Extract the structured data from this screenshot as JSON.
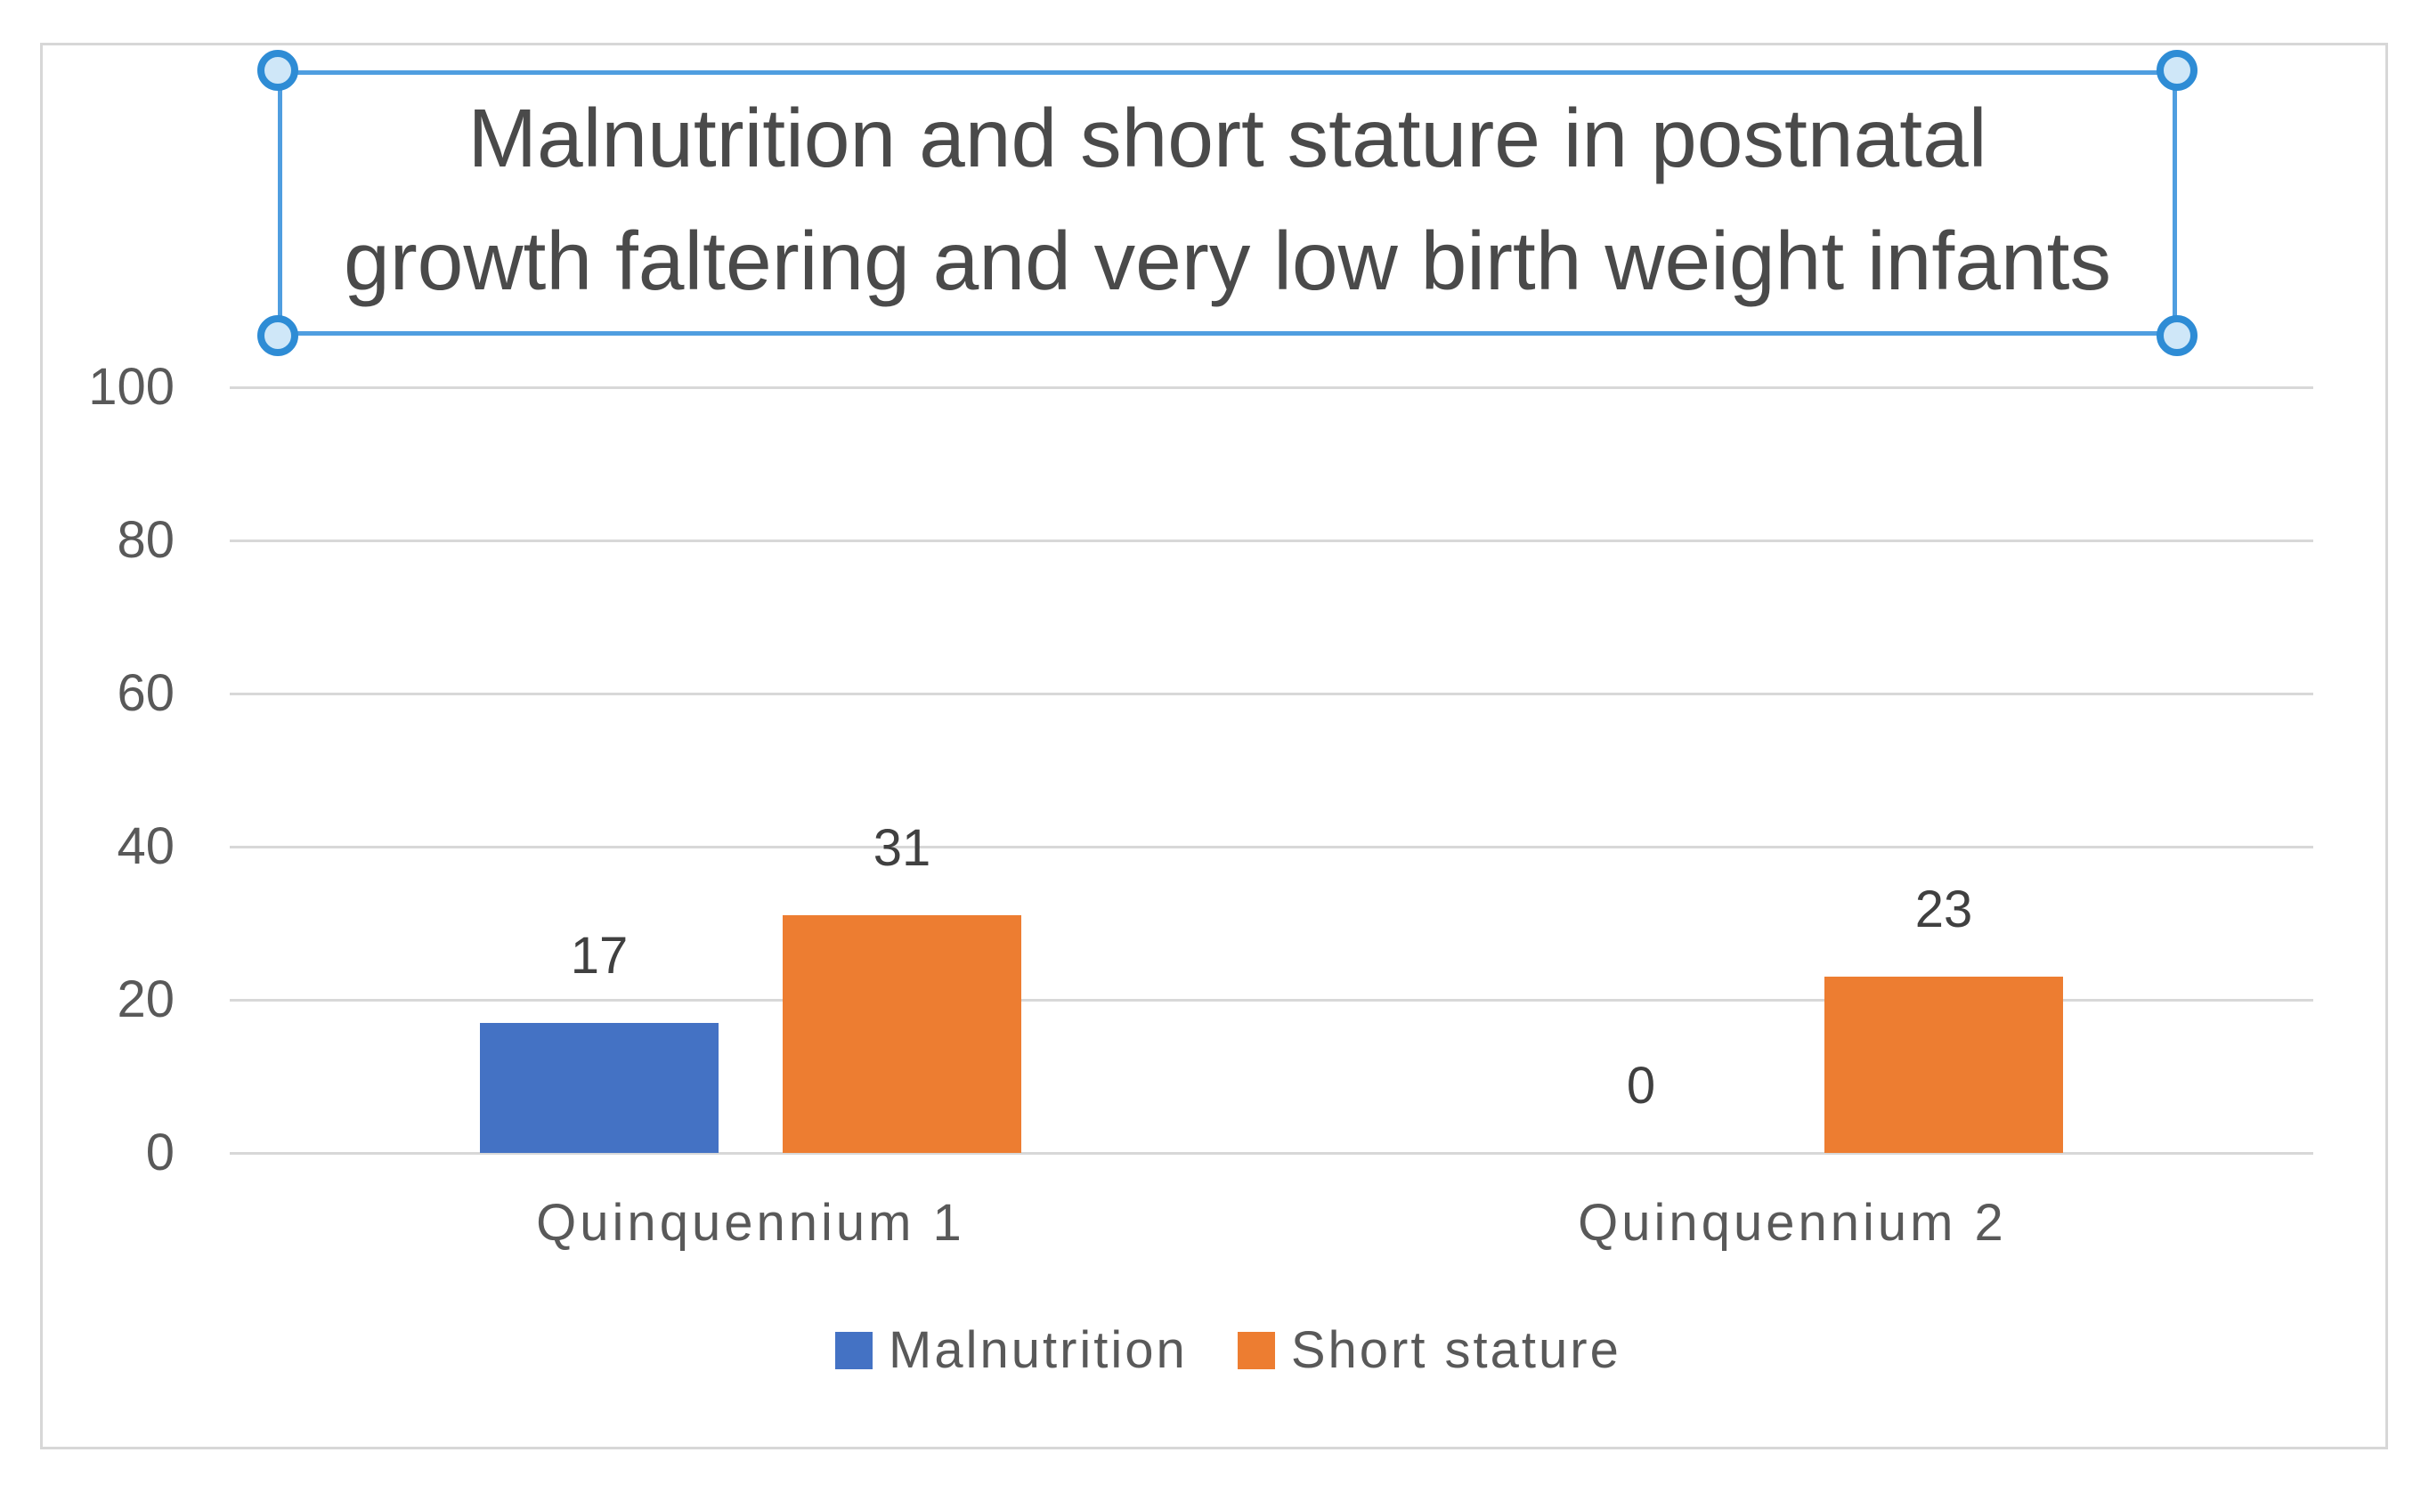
{
  "chart_data": {
    "type": "bar",
    "title": "Malnutrition and short stature in postnatal growth faltering and very low birth weight infants",
    "title_lines": [
      "Malnutrition and short stature in postnatal",
      "growth faltering and very low birth weight infants"
    ],
    "categories": [
      "Quinquennium 1",
      "Quinquennium 2"
    ],
    "series": [
      {
        "name": "Malnutrition",
        "color": "#4472C4",
        "values": [
          17,
          0
        ]
      },
      {
        "name": "Short stature",
        "color": "#ED7D31",
        "values": [
          31,
          23
        ]
      }
    ],
    "ylim": [
      0,
      100
    ],
    "yticks": [
      0,
      20,
      40,
      60,
      80,
      100
    ],
    "grid": true,
    "gridline_color": "#d8d8d8",
    "frame_border_color": "#d7d7d7",
    "legend_position": "bottom",
    "axis_text_color": "#595959",
    "data_label_color": "#404040",
    "title_color": "#4a4a4a",
    "selection": {
      "active": true,
      "border_color": "#4f9ee0",
      "handle_border_color": "#2e8cd5",
      "handle_fill_color": "#cfe7f8"
    }
  }
}
